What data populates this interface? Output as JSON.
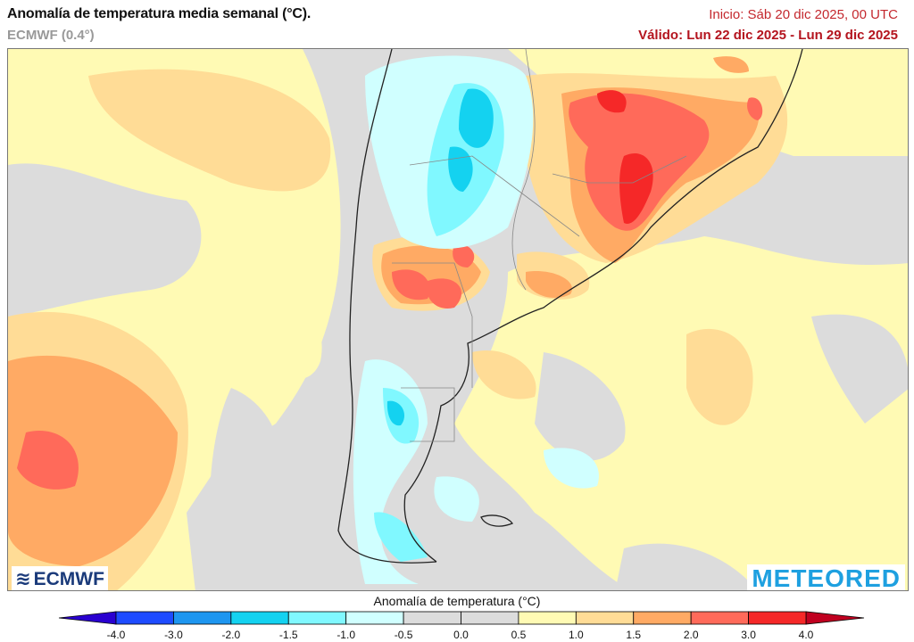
{
  "header": {
    "title": "Anomalía de temperatura media semanal (°C).",
    "model": "ECMWF (0.4°)",
    "init": "Inicio: Sáb 20 dic 2025, 00 UTC",
    "valid": "Válido: Lun 22 dic 2025 - Lun 29 dic 2025"
  },
  "map": {
    "variable": "Anomalía de temperatura media semanal",
    "region": "Sudamérica austral",
    "logos": {
      "left": "ECMWF",
      "right": "METEORED"
    }
  },
  "colorbar": {
    "title": "Anomalía de temperatura (°C)",
    "ticks": [
      "-4.0",
      "-3.0",
      "-2.0",
      "-1.5",
      "-1.0",
      "-0.5",
      "0.0",
      "0.5",
      "1.0",
      "1.5",
      "2.0",
      "3.0",
      "4.0"
    ],
    "under_color": "#2a00d0",
    "over_color": "#c00020",
    "colors": [
      "#1e4bff",
      "#1e96f0",
      "#14d2f0",
      "#80f8ff",
      "#d0ffff",
      "#dcdcdc",
      "#dcdcdc",
      "#fffab4",
      "#ffdc96",
      "#ffaa64",
      "#ff6a5a",
      "#f52828"
    ]
  }
}
